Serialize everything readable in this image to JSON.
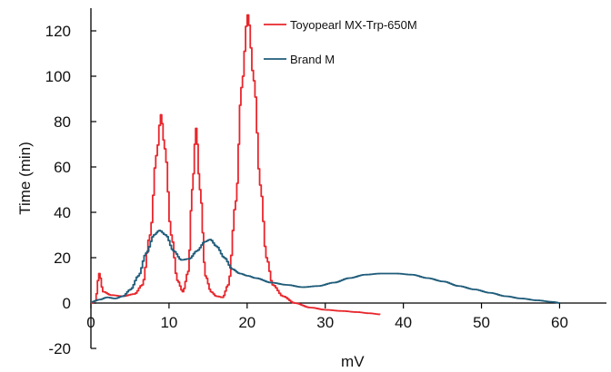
{
  "chart_data": {
    "type": "line",
    "xlabel": "mV",
    "ylabel": "Time (min)",
    "xlim": [
      0,
      66
    ],
    "ylim": [
      -20,
      130
    ],
    "x_ticks": [
      0,
      10,
      20,
      30,
      40,
      50,
      60
    ],
    "y_ticks": [
      -20,
      0,
      20,
      40,
      60,
      80,
      100,
      120
    ],
    "grid": false,
    "legend_position": "top-right",
    "series": [
      {
        "name": "Toyopearl MX-Trp-650M",
        "color": "#e8262c",
        "points": [
          [
            0,
            0
          ],
          [
            0.5,
            1
          ],
          [
            1.0,
            13
          ],
          [
            1.5,
            5
          ],
          [
            2.5,
            3.5
          ],
          [
            4,
            3
          ],
          [
            5.5,
            4
          ],
          [
            6.5,
            8
          ],
          [
            7.5,
            30
          ],
          [
            8.3,
            65
          ],
          [
            8.9,
            83
          ],
          [
            9.4,
            68
          ],
          [
            10.2,
            30
          ],
          [
            11,
            10
          ],
          [
            11.7,
            5
          ],
          [
            12.4,
            14
          ],
          [
            12.9,
            50
          ],
          [
            13.4,
            77
          ],
          [
            13.9,
            50
          ],
          [
            14.6,
            12
          ],
          [
            15.3,
            5
          ],
          [
            16,
            3
          ],
          [
            16.8,
            2.5
          ],
          [
            17.5,
            8
          ],
          [
            18.5,
            45
          ],
          [
            19.2,
            95
          ],
          [
            20,
            127
          ],
          [
            20.8,
            98
          ],
          [
            21.6,
            52
          ],
          [
            22.4,
            20
          ],
          [
            23.2,
            8
          ],
          [
            24.5,
            3
          ],
          [
            26,
            0
          ],
          [
            28,
            -2
          ],
          [
            30,
            -3
          ],
          [
            32,
            -3.5
          ],
          [
            34,
            -4
          ],
          [
            35.5,
            -4.5
          ],
          [
            37,
            -5
          ]
        ]
      },
      {
        "name": "Brand M",
        "color": "#1f5c7a",
        "points": [
          [
            0,
            0.5
          ],
          [
            1,
            1.5
          ],
          [
            2,
            2.5
          ],
          [
            3,
            2
          ],
          [
            4,
            3
          ],
          [
            5,
            6
          ],
          [
            6,
            12
          ],
          [
            7,
            22
          ],
          [
            8,
            30
          ],
          [
            8.7,
            32
          ],
          [
            9.5,
            30
          ],
          [
            10.5,
            23
          ],
          [
            11.5,
            19
          ],
          [
            12.5,
            19.5
          ],
          [
            13.5,
            23
          ],
          [
            14.5,
            27
          ],
          [
            15.2,
            28
          ],
          [
            16,
            25
          ],
          [
            17,
            20
          ],
          [
            18,
            15
          ],
          [
            19,
            13
          ],
          [
            20,
            12
          ],
          [
            21,
            11
          ],
          [
            23,
            9
          ],
          [
            25,
            8
          ],
          [
            27,
            7
          ],
          [
            29,
            7.5
          ],
          [
            31,
            9
          ],
          [
            33,
            11
          ],
          [
            35,
            12.5
          ],
          [
            37,
            13
          ],
          [
            39,
            13
          ],
          [
            41,
            12.5
          ],
          [
            43,
            11
          ],
          [
            45,
            9.5
          ],
          [
            47,
            7.5
          ],
          [
            49,
            6
          ],
          [
            51,
            4.5
          ],
          [
            53,
            3
          ],
          [
            55,
            2
          ],
          [
            57,
            1.2
          ],
          [
            59,
            0.5
          ],
          [
            60,
            0
          ]
        ]
      }
    ]
  }
}
